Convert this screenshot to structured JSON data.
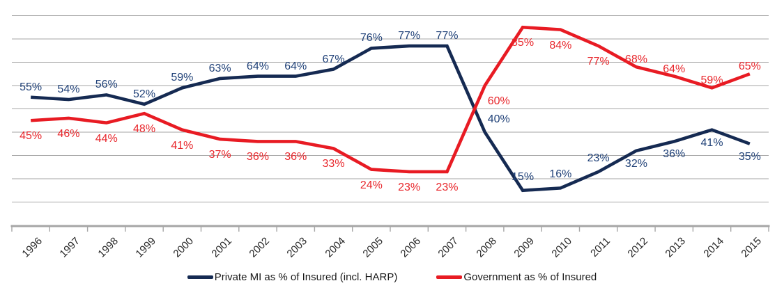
{
  "chart_data": {
    "type": "line",
    "title": "",
    "categories": [
      "1996",
      "1997",
      "1998",
      "1999",
      "2000",
      "2001",
      "2002",
      "2003",
      "2004",
      "2005",
      "2006",
      "2007",
      "2008",
      "2009",
      "2010",
      "2011",
      "2012",
      "2013",
      "2014",
      "2015"
    ],
    "series": [
      {
        "name": "Private MI as % of Insured (incl. HARP)",
        "color": "#152A52",
        "label_color": "#1F4077",
        "values": [
          55,
          54,
          56,
          52,
          59,
          63,
          64,
          64,
          67,
          76,
          77,
          77,
          40,
          15,
          16,
          23,
          32,
          36,
          41,
          35
        ]
      },
      {
        "name": "Government as % of Insured",
        "color": "#E81B23",
        "label_color": "#E8262B",
        "values": [
          45,
          46,
          44,
          48,
          41,
          37,
          36,
          36,
          33,
          24,
          23,
          23,
          60,
          85,
          84,
          77,
          68,
          64,
          59,
          65
        ]
      }
    ],
    "value_suffix": "%",
    "ylim": [
      0,
      100
    ],
    "gridlines_pct": [
      10,
      20,
      30,
      40,
      50,
      60,
      70,
      80,
      90
    ],
    "grid": true,
    "grid_color": "#A6A6A6",
    "axis_color": "#A6A6A6",
    "legend_position": "bottom"
  }
}
